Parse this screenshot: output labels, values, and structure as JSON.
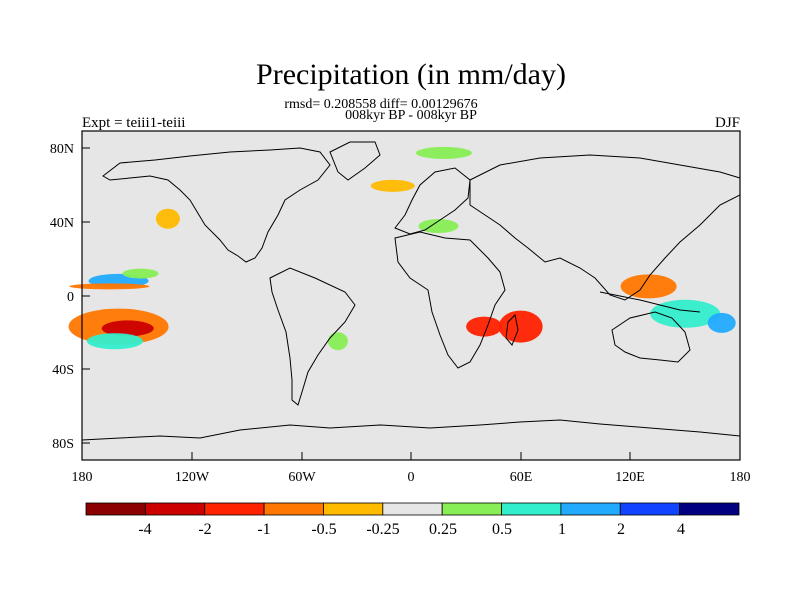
{
  "title": "Precipitation (in mm/day)",
  "stats": "rmsd= 0.208558 diff= 0.00129676",
  "periods": "008kyr BP - 008kyr BP",
  "experiment": "Expt = teiii1-teiii",
  "season": "DJF",
  "map": {
    "projection": "cylindrical equidistant",
    "lon_range": [
      -180,
      180
    ],
    "lat_range": [
      -90,
      90
    ],
    "background_color": "#e6e6e6",
    "lat_ticks": [
      "80N",
      "40N",
      "0",
      "40S",
      "80S"
    ],
    "lon_ticks": [
      "180",
      "120W",
      "60W",
      "0",
      "60E",
      "120E",
      "180"
    ]
  },
  "colorbar": {
    "labels": [
      "-4",
      "-2",
      "-1",
      "-0.5",
      "-0.25",
      "0.25",
      "0.5",
      "1",
      "2",
      "4"
    ],
    "colors": [
      "#8b0000",
      "#cc0000",
      "#ff2200",
      "#ff7700",
      "#ffbb00",
      "#e6e6e6",
      "#88ee55",
      "#33eecc",
      "#22aaff",
      "#1144ff",
      "#000080"
    ]
  },
  "anomalies": [
    {
      "name": "central-pacific-south-negative",
      "lon": -160,
      "lat": -17,
      "color": "#ff7700"
    },
    {
      "name": "central-pacific-south-core",
      "lon": -155,
      "lat": -18,
      "color": "#cc0000"
    },
    {
      "name": "central-pacific-south-positive",
      "lon": -162,
      "lat": -25,
      "color": "#33eecc"
    },
    {
      "name": "central-pacific-north-positive",
      "lon": -160,
      "lat": 8,
      "color": "#22aaff"
    },
    {
      "name": "central-pacific-north-negative",
      "lon": -165,
      "lat": 5,
      "color": "#ff7700"
    },
    {
      "name": "gulf-of-alaska-negative",
      "lon": -133,
      "lat": 42,
      "color": "#ffbb00"
    },
    {
      "name": "north-atlantic-negative",
      "lon": -10,
      "lat": 60,
      "color": "#ffbb00"
    },
    {
      "name": "arctic-positive",
      "lon": 18,
      "lat": 78,
      "color": "#88ee55"
    },
    {
      "name": "east-africa-negative",
      "lon": 40,
      "lat": -17,
      "color": "#ff2200"
    },
    {
      "name": "madagascar-negative",
      "lon": 60,
      "lat": -17,
      "color": "#ff2200"
    },
    {
      "name": "western-pacific-negative",
      "lon": 130,
      "lat": 5,
      "color": "#ff7700"
    },
    {
      "name": "maritime-continent-positive",
      "lon": 150,
      "lat": -10,
      "color": "#33eecc"
    },
    {
      "name": "southern-pacific-positive",
      "lon": 170,
      "lat": -15,
      "color": "#22aaff"
    },
    {
      "name": "mediterranean-positive",
      "lon": 15,
      "lat": 38,
      "color": "#88ee55"
    },
    {
      "name": "south-atlantic-positive",
      "lon": -40,
      "lat": -25,
      "color": "#88ee55"
    },
    {
      "name": "pacific-north-positive",
      "lon": -148,
      "lat": 12,
      "color": "#88ee55"
    }
  ]
}
